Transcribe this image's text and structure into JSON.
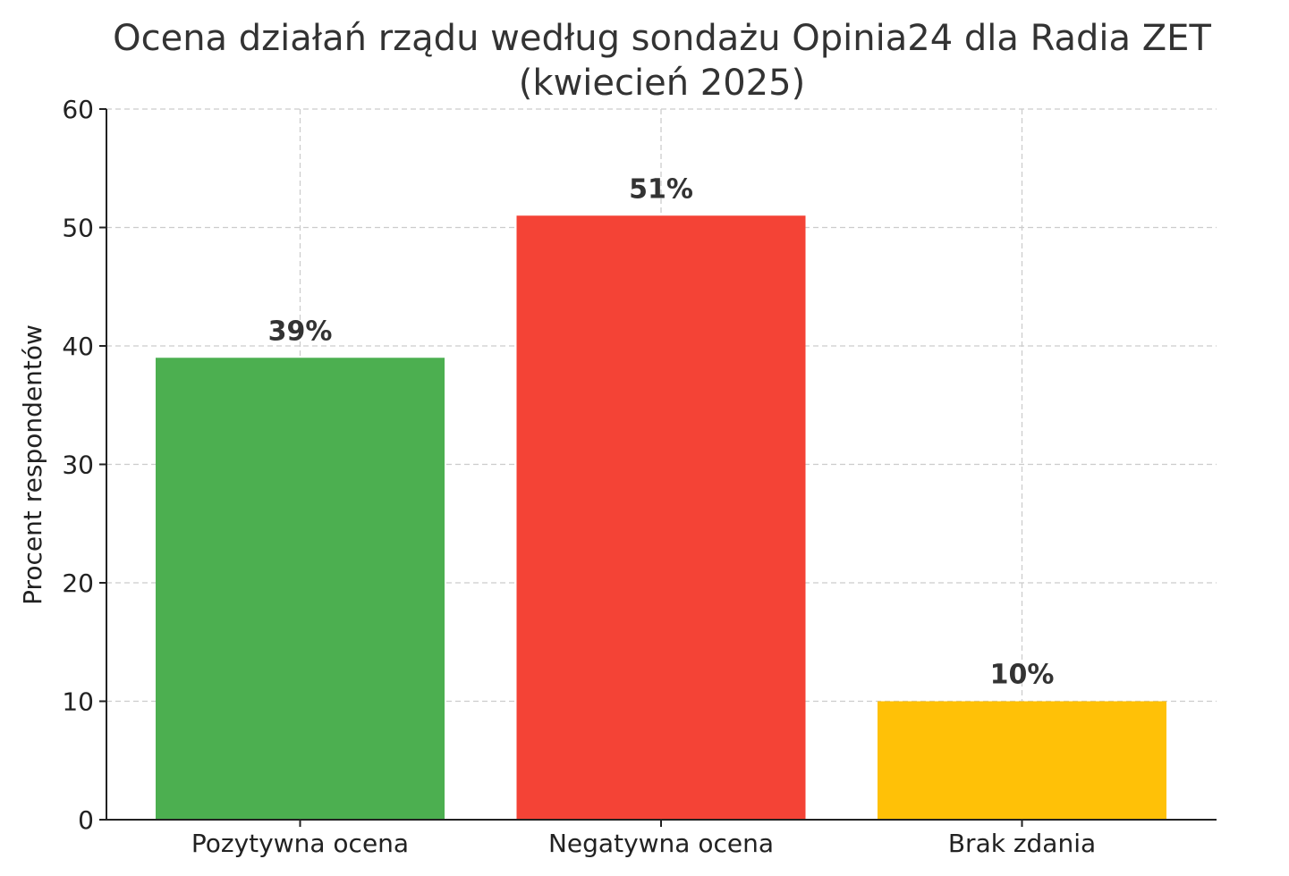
{
  "chart_data": {
    "type": "bar",
    "title": "Ocena działań rządu według sondażu Opinia24 dla Radia ZET",
    "subtitle": "(kwiecień 2025)",
    "xlabel": "",
    "ylabel": "Procent respondentów",
    "categories": [
      "Pozytywna ocena",
      "Negatywna ocena",
      "Brak zdania"
    ],
    "values": [
      39,
      51,
      10
    ],
    "data_labels": [
      "39%",
      "51%",
      "10%"
    ],
    "colors": [
      "#4caf50",
      "#f44336",
      "#ffc107"
    ],
    "ylim": [
      0,
      60
    ],
    "yticks": [
      0,
      10,
      20,
      30,
      40,
      50,
      60
    ],
    "ytick_labels": [
      "0",
      "10",
      "20",
      "30",
      "40",
      "50",
      "60"
    ],
    "grid": true
  }
}
